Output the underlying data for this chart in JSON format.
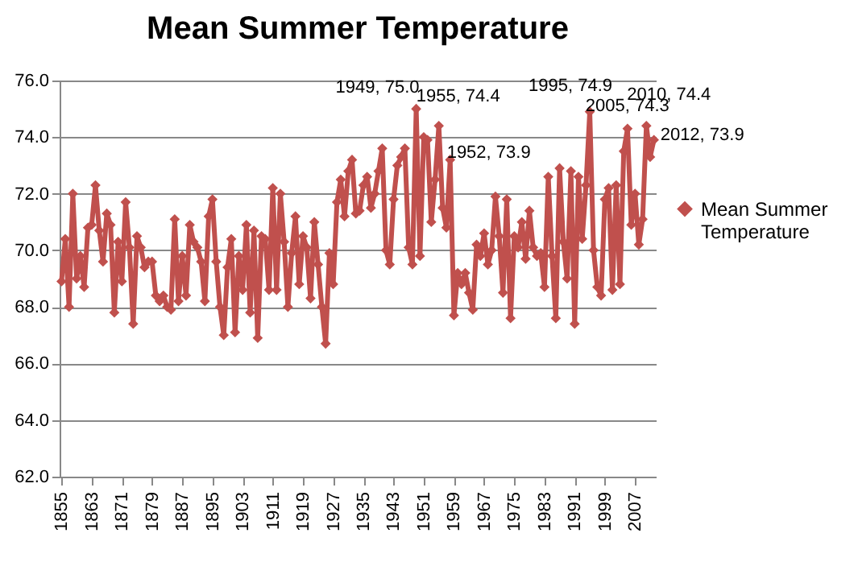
{
  "chart_data": {
    "type": "line",
    "title": "Mean Summer Temperature",
    "x": [
      1855,
      1856,
      1857,
      1858,
      1859,
      1860,
      1861,
      1862,
      1863,
      1864,
      1865,
      1866,
      1867,
      1868,
      1869,
      1870,
      1871,
      1872,
      1873,
      1874,
      1875,
      1876,
      1877,
      1878,
      1879,
      1880,
      1881,
      1882,
      1883,
      1884,
      1885,
      1886,
      1887,
      1888,
      1889,
      1890,
      1891,
      1892,
      1893,
      1894,
      1895,
      1896,
      1897,
      1898,
      1899,
      1900,
      1901,
      1902,
      1903,
      1904,
      1905,
      1906,
      1907,
      1908,
      1909,
      1910,
      1911,
      1912,
      1913,
      1914,
      1915,
      1916,
      1917,
      1918,
      1919,
      1920,
      1921,
      1922,
      1923,
      1924,
      1925,
      1926,
      1927,
      1928,
      1929,
      1930,
      1931,
      1932,
      1933,
      1934,
      1935,
      1936,
      1937,
      1938,
      1939,
      1940,
      1941,
      1942,
      1943,
      1944,
      1945,
      1946,
      1947,
      1948,
      1949,
      1950,
      1951,
      1952,
      1953,
      1954,
      1955,
      1956,
      1957,
      1958,
      1959,
      1960,
      1961,
      1962,
      1963,
      1964,
      1965,
      1966,
      1967,
      1968,
      1969,
      1970,
      1971,
      1972,
      1973,
      1974,
      1975,
      1976,
      1977,
      1978,
      1979,
      1980,
      1981,
      1982,
      1983,
      1984,
      1985,
      1986,
      1987,
      1988,
      1989,
      1990,
      1991,
      1992,
      1993,
      1994,
      1995,
      1996,
      1997,
      1998,
      1999,
      2000,
      2001,
      2002,
      2003,
      2004,
      2005,
      2006,
      2007,
      2008,
      2009,
      2010,
      2011,
      2012
    ],
    "series": [
      {
        "name": "Mean Summer Temperature",
        "color": "#c0504d",
        "values": [
          68.9,
          70.4,
          68.0,
          72.0,
          69.0,
          69.8,
          68.7,
          70.8,
          70.9,
          72.3,
          70.7,
          69.6,
          71.3,
          70.9,
          67.8,
          70.3,
          68.9,
          71.7,
          70.1,
          67.4,
          70.5,
          70.1,
          69.4,
          69.6,
          69.6,
          68.4,
          68.2,
          68.4,
          68.0,
          67.9,
          71.1,
          68.2,
          69.8,
          68.4,
          70.9,
          70.3,
          70.1,
          69.6,
          68.2,
          71.2,
          71.8,
          69.6,
          68.0,
          67.0,
          69.4,
          70.4,
          67.1,
          69.8,
          68.6,
          70.9,
          67.8,
          70.7,
          66.9,
          70.5,
          70.4,
          68.6,
          72.2,
          68.6,
          72.0,
          70.3,
          68.0,
          69.9,
          71.2,
          68.8,
          70.5,
          70.1,
          68.3,
          71.0,
          69.5,
          68.0,
          66.7,
          69.9,
          68.8,
          71.7,
          72.5,
          71.2,
          72.8,
          73.2,
          71.3,
          71.4,
          72.3,
          72.6,
          71.5,
          72.0,
          72.8,
          73.6,
          70.0,
          69.5,
          71.8,
          73.0,
          73.3,
          73.6,
          70.1,
          69.5,
          75.0,
          69.8,
          74.0,
          73.9,
          71.0,
          72.5,
          74.4,
          71.5,
          70.8,
          73.2,
          67.7,
          69.2,
          68.8,
          69.2,
          68.5,
          67.9,
          70.2,
          69.8,
          70.6,
          69.5,
          70.0,
          71.9,
          70.5,
          68.5,
          71.8,
          67.6,
          70.5,
          70.1,
          71.0,
          69.7,
          71.4,
          70.1,
          69.8,
          69.9,
          68.7,
          72.6,
          69.8,
          67.6,
          72.9,
          70.3,
          69.0,
          72.8,
          67.4,
          72.6,
          70.4,
          72.3,
          74.9,
          70.0,
          68.7,
          68.4,
          71.8,
          72.2,
          68.6,
          72.3,
          68.8,
          73.5,
          74.3,
          70.9,
          72.0,
          70.2,
          71.1,
          74.4,
          73.3,
          73.9
        ]
      }
    ],
    "xlim": [
      1854.5,
      2012.5
    ],
    "xticks": [
      1855,
      1863,
      1871,
      1879,
      1887,
      1895,
      1903,
      1911,
      1919,
      1927,
      1935,
      1943,
      1951,
      1959,
      1967,
      1975,
      1983,
      1991,
      1999,
      2007
    ],
    "ylim": [
      62,
      76
    ],
    "yticks": [
      {
        "value": 62,
        "label": "62.0"
      },
      {
        "value": 64,
        "label": "64.0"
      },
      {
        "value": 66,
        "label": "66.0"
      },
      {
        "value": 68,
        "label": "68.0"
      },
      {
        "value": 70,
        "label": "70.0"
      },
      {
        "value": 72,
        "label": "72.0"
      },
      {
        "value": 74,
        "label": "74.0"
      },
      {
        "value": 76,
        "label": "76.0"
      }
    ],
    "grid": "y",
    "legend": "right",
    "marker": "diamond",
    "line_style": "solid",
    "annotations": [
      {
        "text": "1949, 75.0",
        "x": 1949,
        "y": 75.0
      },
      {
        "text": "1955, 74.4",
        "x": 1955,
        "y": 74.4
      },
      {
        "text": "1952, 73.9",
        "x": 1952,
        "y": 73.9
      },
      {
        "text": "1995, 74.9",
        "x": 1995,
        "y": 74.9
      },
      {
        "text": "2005, 74.3",
        "x": 2005,
        "y": 74.3
      },
      {
        "text": "2010, 74.4",
        "x": 2010,
        "y": 74.4
      },
      {
        "text": "2012, 73.9",
        "x": 2012,
        "y": 73.9
      }
    ]
  }
}
